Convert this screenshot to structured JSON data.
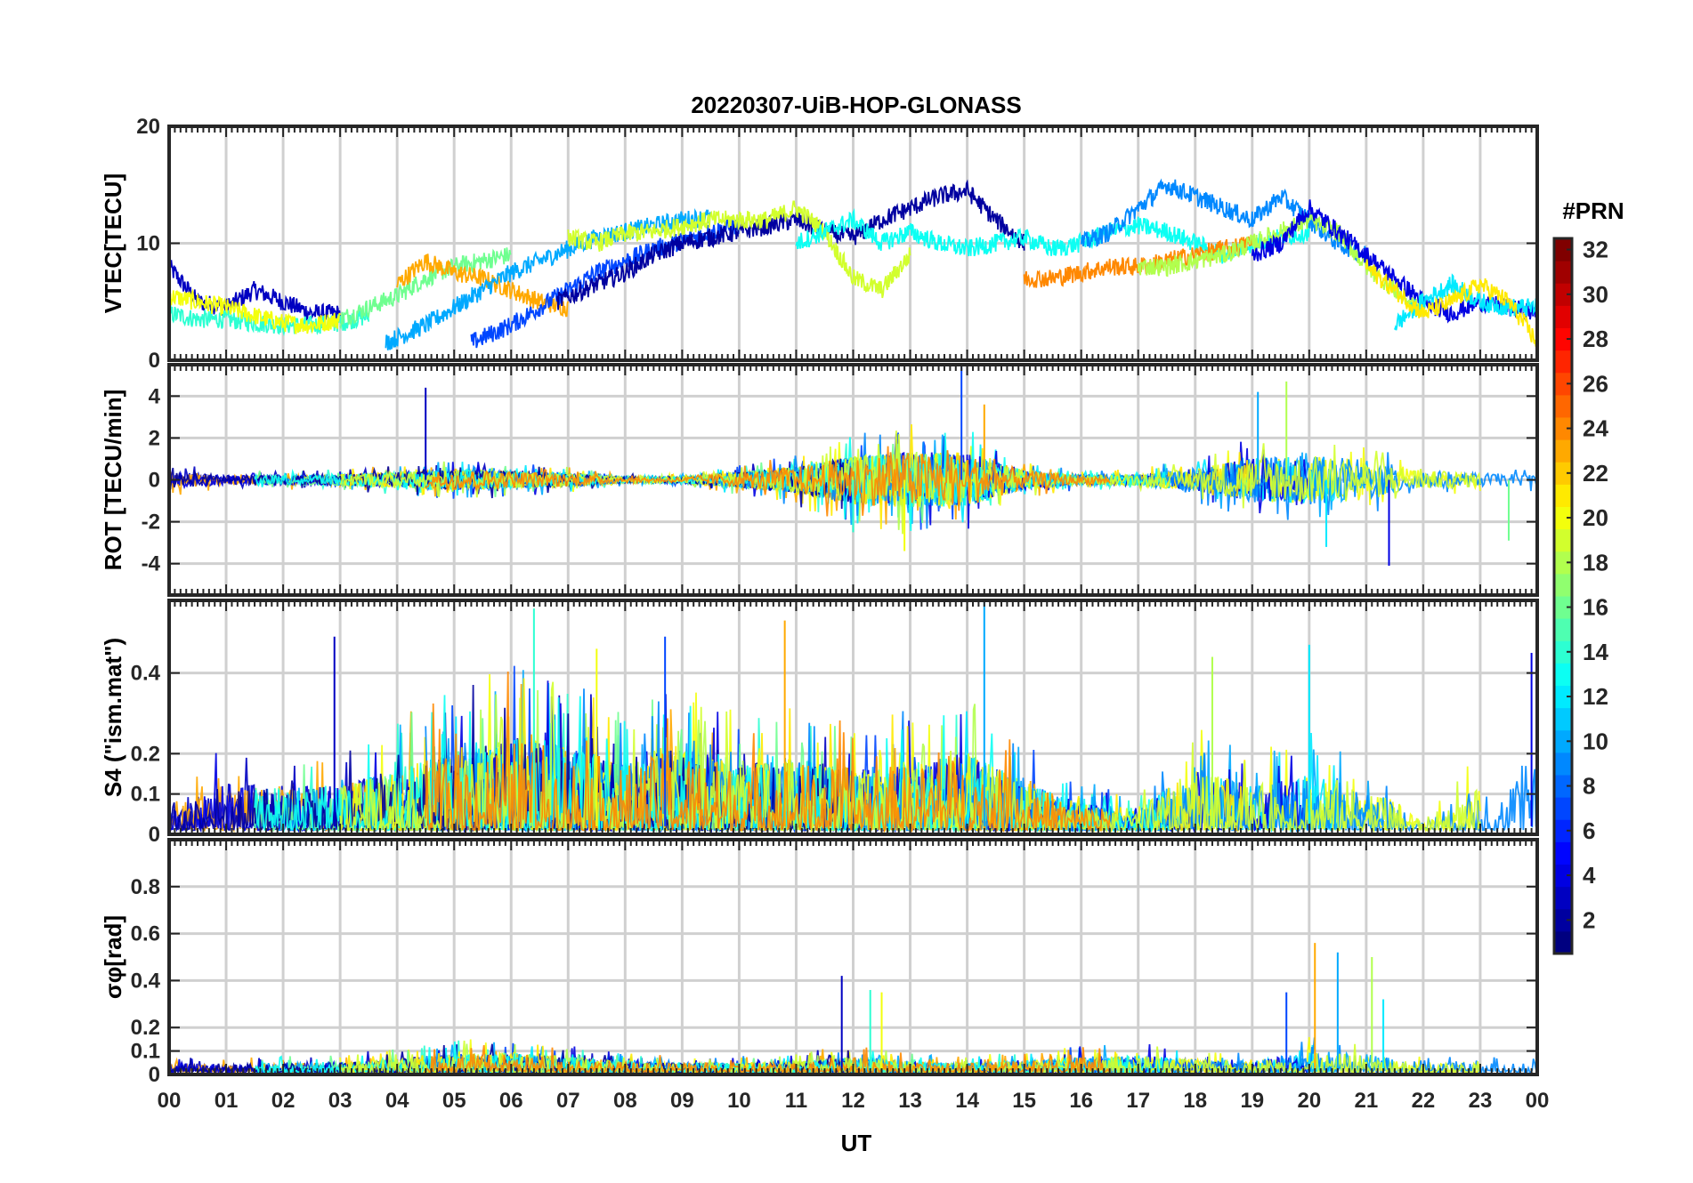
{
  "figure": {
    "title": "20220307-UiB-HOP-GLONASS",
    "xlabel": "UT"
  },
  "colorbar": {
    "label": "#PRN",
    "range": [
      1,
      32
    ],
    "ticks": [
      "2",
      "4",
      "6",
      "8",
      "10",
      "12",
      "14",
      "16",
      "18",
      "20",
      "22",
      "24",
      "26",
      "28",
      "30",
      "32"
    ],
    "colormap": "jet"
  },
  "chart_data": [
    {
      "type": "line",
      "panel": "vtec",
      "ylabel": "VTEC[TECU]",
      "ylim": [
        0,
        20
      ],
      "yticks": [
        "0",
        "10",
        "20"
      ],
      "xlim": [
        0,
        24
      ],
      "xticks": [
        "00",
        "01",
        "02",
        "03",
        "04",
        "05",
        "06",
        "07",
        "08",
        "09",
        "10",
        "11",
        "12",
        "13",
        "14",
        "15",
        "16",
        "17",
        "18",
        "19",
        "20",
        "21",
        "22",
        "23",
        "00"
      ],
      "grid": true,
      "color_by": "#PRN",
      "series": [
        {
          "prn": 3,
          "x": [
            0,
            0.5,
            1,
            1.5,
            2,
            2.5,
            3
          ],
          "y": [
            8,
            5,
            4.5,
            6,
            5,
            4,
            4
          ]
        },
        {
          "prn": 14,
          "x": [
            0,
            0.5,
            1,
            1.5,
            2,
            2.5,
            3,
            3.5
          ],
          "y": [
            4,
            3.5,
            3.5,
            3.2,
            3,
            3,
            3.2,
            3.8
          ]
        },
        {
          "prn": 20,
          "x": [
            0,
            0.5,
            1,
            1.5,
            2,
            2.5,
            3
          ],
          "y": [
            5.5,
            5,
            4.5,
            3.8,
            3.2,
            3,
            3.5
          ]
        },
        {
          "prn": 16,
          "x": [
            3,
            3.5,
            4,
            4.5,
            5,
            5.5,
            6
          ],
          "y": [
            3.5,
            4.5,
            5.5,
            7,
            8,
            8.5,
            9
          ]
        },
        {
          "prn": 23,
          "x": [
            4,
            4.5,
            5,
            5.5,
            6,
            6.5,
            7
          ],
          "y": [
            6.5,
            8.5,
            7.5,
            7,
            6,
            5,
            4.5
          ]
        },
        {
          "prn": 10,
          "x": [
            3.8,
            4.5,
            5,
            5.5,
            6,
            6.5,
            7,
            7.5,
            8,
            8.5,
            9,
            9.5
          ],
          "y": [
            1.5,
            3,
            4.5,
            6,
            7.5,
            8.5,
            9.5,
            10.5,
            11,
            11.5,
            12,
            12.2
          ]
        },
        {
          "prn": 7,
          "x": [
            5.3,
            6,
            6.5,
            7,
            7.5,
            8,
            8.5,
            9,
            9.5,
            10
          ],
          "y": [
            1.5,
            3,
            4.5,
            6,
            7.5,
            8.5,
            9.5,
            10.2,
            11,
            11.5
          ]
        },
        {
          "prn": 2,
          "x": [
            6.8,
            7.5,
            8,
            8.5,
            9,
            9.5,
            10,
            10.5,
            11,
            11.5,
            12,
            12.5,
            13,
            13.5,
            14,
            14.5,
            15
          ],
          "y": [
            5,
            6.5,
            7.5,
            9,
            10,
            10.5,
            11,
            11.5,
            12,
            11,
            10.5,
            12,
            13,
            14,
            14.5,
            12,
            10
          ]
        },
        {
          "prn": 19,
          "x": [
            7,
            7.5,
            8,
            8.5,
            9,
            9.5,
            10,
            10.5,
            11,
            11.5,
            12,
            12.5,
            13
          ],
          "y": [
            10.5,
            10,
            10.8,
            11,
            11.5,
            12,
            12,
            12,
            13,
            11,
            7,
            6,
            9
          ]
        },
        {
          "prn": 13,
          "x": [
            11,
            11.5,
            12,
            12.5,
            13,
            13.5,
            14,
            14.5,
            15,
            15.5,
            16,
            16.5,
            17,
            17.5,
            18,
            18.5,
            19,
            19.5,
            20
          ],
          "y": [
            10,
            11,
            12,
            10,
            11,
            10,
            9.5,
            10,
            10.5,
            9.5,
            10,
            11,
            11.5,
            11,
            10,
            9,
            10,
            10.5,
            11
          ]
        },
        {
          "prn": 9,
          "x": [
            16,
            16.5,
            17,
            17.5,
            18,
            18.5,
            19,
            19.5,
            20,
            20.5,
            21
          ],
          "y": [
            10,
            11,
            13,
            15,
            14,
            13,
            12,
            14,
            12,
            10,
            9
          ]
        },
        {
          "prn": 24,
          "x": [
            15,
            15.5,
            16,
            16.5,
            17,
            17.5,
            18,
            18.5,
            19
          ],
          "y": [
            7,
            7,
            7.5,
            8,
            8,
            8.5,
            9,
            9.5,
            10
          ]
        },
        {
          "prn": 18,
          "x": [
            17,
            17.5,
            18,
            18.5,
            19,
            19.5,
            20,
            20.5,
            21,
            21.5,
            22
          ],
          "y": [
            8,
            8,
            8.5,
            9,
            10,
            11,
            12,
            11,
            8,
            6,
            4
          ]
        },
        {
          "prn": 4,
          "x": [
            19,
            19.5,
            20,
            20.5,
            21,
            21.5,
            22,
            22.5,
            23,
            23.5,
            24
          ],
          "y": [
            9,
            10,
            13,
            11,
            9,
            7,
            5,
            4,
            5,
            4.5,
            4
          ]
        },
        {
          "prn": 12,
          "x": [
            21.5,
            22,
            22.5,
            23,
            23.5,
            24
          ],
          "y": [
            3,
            5,
            6.5,
            5,
            4.5,
            4.5
          ]
        },
        {
          "prn": 21,
          "x": [
            21,
            21.5,
            22,
            22.5,
            23,
            23.5,
            24
          ],
          "y": [
            8,
            6,
            4,
            5,
            6.5,
            5,
            1.5
          ]
        }
      ]
    },
    {
      "type": "line",
      "panel": "rot",
      "ylabel": "ROT [TECU/min]",
      "ylim": [
        -5.5,
        5.5
      ],
      "yticks": [
        "-4",
        "-2",
        "0",
        "2",
        "4"
      ],
      "xlim": [
        0,
        24
      ],
      "grid": true,
      "color_by": "#PRN",
      "envelope": {
        "x": [
          0,
          1,
          2,
          3,
          4,
          5,
          6,
          7,
          8,
          9,
          10,
          11,
          12,
          13,
          14,
          15,
          16,
          17,
          18,
          19,
          20,
          21,
          22,
          23,
          24
        ],
        "amplitude": [
          0.9,
          0.5,
          0.5,
          0.6,
          0.8,
          1.1,
          0.9,
          0.7,
          0.3,
          0.3,
          0.8,
          1.4,
          2.5,
          3,
          2.8,
          1,
          0.5,
          0.6,
          1.2,
          2.3,
          2.6,
          2.2,
          1,
          0.7,
          0.6
        ]
      },
      "peaks": [
        {
          "x": 4.5,
          "y": 4.4
        },
        {
          "x": 12.0,
          "y": -2.5
        },
        {
          "x": 12.9,
          "y": -3.4
        },
        {
          "x": 13.9,
          "y": 5.4
        },
        {
          "x": 14.3,
          "y": 3.6
        },
        {
          "x": 19.1,
          "y": 4.2
        },
        {
          "x": 19.6,
          "y": 4.7
        },
        {
          "x": 20.3,
          "y": -3.2
        },
        {
          "x": 21.4,
          "y": -4.1
        },
        {
          "x": 23.5,
          "y": -2.9
        }
      ]
    },
    {
      "type": "line",
      "panel": "s4",
      "ylabel": "S4 (\"ism.mat\")",
      "ylim": [
        0,
        0.58
      ],
      "yticks": [
        "0",
        "0.1",
        "0.2",
        "0.4"
      ],
      "xlim": [
        0,
        24
      ],
      "grid": true,
      "color_by": "#PRN",
      "envelope": {
        "x": [
          0,
          1,
          2,
          3,
          4,
          5,
          6,
          7,
          8,
          9,
          10,
          11,
          12,
          13,
          14,
          15,
          16,
          17,
          18,
          19,
          20,
          21,
          22,
          23,
          24
        ],
        "amplitude": [
          0.12,
          0.22,
          0.2,
          0.2,
          0.28,
          0.35,
          0.42,
          0.38,
          0.3,
          0.38,
          0.3,
          0.32,
          0.28,
          0.3,
          0.35,
          0.22,
          0.12,
          0.1,
          0.28,
          0.2,
          0.25,
          0.22,
          0.05,
          0.2,
          0.3
        ]
      },
      "peaks": [
        {
          "x": 2.9,
          "y": 0.49
        },
        {
          "x": 6.4,
          "y": 0.56
        },
        {
          "x": 7.5,
          "y": 0.46
        },
        {
          "x": 8.7,
          "y": 0.49
        },
        {
          "x": 10.8,
          "y": 0.53
        },
        {
          "x": 14.3,
          "y": 0.58
        },
        {
          "x": 18.3,
          "y": 0.44
        },
        {
          "x": 20.0,
          "y": 0.47
        },
        {
          "x": 23.9,
          "y": 0.45
        }
      ]
    },
    {
      "type": "line",
      "panel": "sigma_phi",
      "ylabel": "σφ[rad]",
      "ylim": [
        0,
        1
      ],
      "yticks": [
        "0",
        "0.1",
        "0.2",
        "0.4",
        "0.6",
        "0.8"
      ],
      "xlim": [
        0,
        24
      ],
      "grid": true,
      "color_by": "#PRN",
      "envelope": {
        "x": [
          0,
          1,
          2,
          3,
          4,
          5,
          6,
          7,
          8,
          9,
          10,
          11,
          12,
          13,
          14,
          15,
          16,
          17,
          18,
          19,
          20,
          21,
          22,
          23,
          24
        ],
        "amplitude": [
          0.08,
          0.06,
          0.07,
          0.08,
          0.1,
          0.14,
          0.15,
          0.12,
          0.08,
          0.07,
          0.07,
          0.08,
          0.12,
          0.08,
          0.07,
          0.09,
          0.12,
          0.13,
          0.1,
          0.09,
          0.15,
          0.14,
          0.07,
          0.07,
          0.07
        ]
      },
      "peaks": [
        {
          "x": 11.8,
          "y": 0.42
        },
        {
          "x": 12.3,
          "y": 0.36
        },
        {
          "x": 12.5,
          "y": 0.35
        },
        {
          "x": 19.6,
          "y": 0.35
        },
        {
          "x": 20.1,
          "y": 0.56
        },
        {
          "x": 20.5,
          "y": 0.52
        },
        {
          "x": 21.1,
          "y": 0.5
        },
        {
          "x": 21.3,
          "y": 0.32
        }
      ]
    }
  ]
}
